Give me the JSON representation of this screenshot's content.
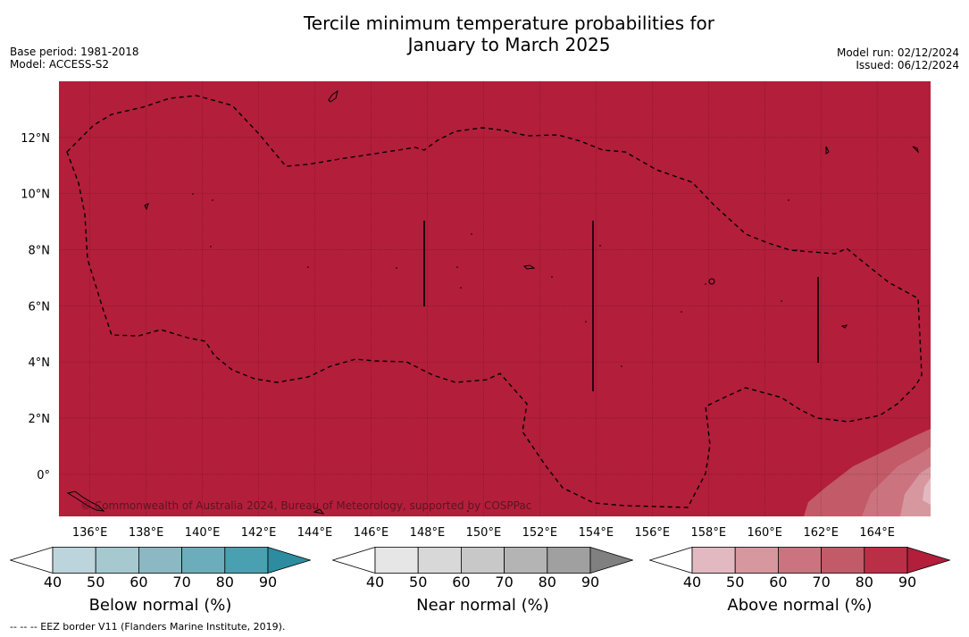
{
  "title": {
    "line1": "Tercile minimum temperature probabilities for",
    "line2": "January to March 2025"
  },
  "meta_left": {
    "base_period": "Base period: 1981-2018",
    "model": "Model: ACCESS-S2"
  },
  "meta_right": {
    "model_run": "Model run: 02/12/2024",
    "issued": "Issued: 06/12/2024"
  },
  "map": {
    "copyright": "© Commonwealth of Australia 2024, Bureau of Meteorology, supported by COSPPac",
    "lat_labels": [
      "12°N",
      "10°N",
      "8°N",
      "6°N",
      "4°N",
      "2°N",
      "0°"
    ],
    "lat_values": [
      12,
      10,
      8,
      6,
      4,
      2,
      0
    ],
    "lon_labels": [
      "136°E",
      "138°E",
      "140°E",
      "142°E",
      "144°E",
      "146°E",
      "148°E",
      "150°E",
      "152°E",
      "154°E",
      "156°E",
      "158°E",
      "160°E",
      "162°E",
      "164°E"
    ],
    "lon_values": [
      136,
      138,
      140,
      142,
      144,
      146,
      148,
      150,
      152,
      154,
      156,
      158,
      160,
      162,
      164
    ],
    "lon_range": [
      134.9,
      165.9
    ],
    "lat_range": [
      -1.5,
      14
    ],
    "fill_color": "#b31e3b"
  },
  "colorbars": [
    {
      "label": "Below normal (%)",
      "ticks": [
        "40",
        "50",
        "60",
        "70",
        "80",
        "90"
      ],
      "colors": [
        "#ffffff",
        "#bcd4db",
        "#a6c9d0",
        "#8bb8c3",
        "#6badba",
        "#48a0b0",
        "#2d8c9f"
      ]
    },
    {
      "label": "Near normal (%)",
      "ticks": [
        "40",
        "50",
        "60",
        "70",
        "80",
        "90"
      ],
      "colors": [
        "#ffffff",
        "#e6e6e6",
        "#d8d8d8",
        "#c8c8c8",
        "#b4b4b4",
        "#a0a0a0",
        "#808080"
      ]
    },
    {
      "label": "Above normal (%)",
      "ticks": [
        "40",
        "50",
        "60",
        "70",
        "80",
        "90"
      ],
      "colors": [
        "#ffffff",
        "#e2b9c0",
        "#d7979f",
        "#cb747f",
        "#c25a67",
        "#b93046",
        "#b31e3b"
      ]
    }
  ],
  "footnote": "--  --  -- EEZ border V11 (Flanders Marine Institute, 2019)."
}
